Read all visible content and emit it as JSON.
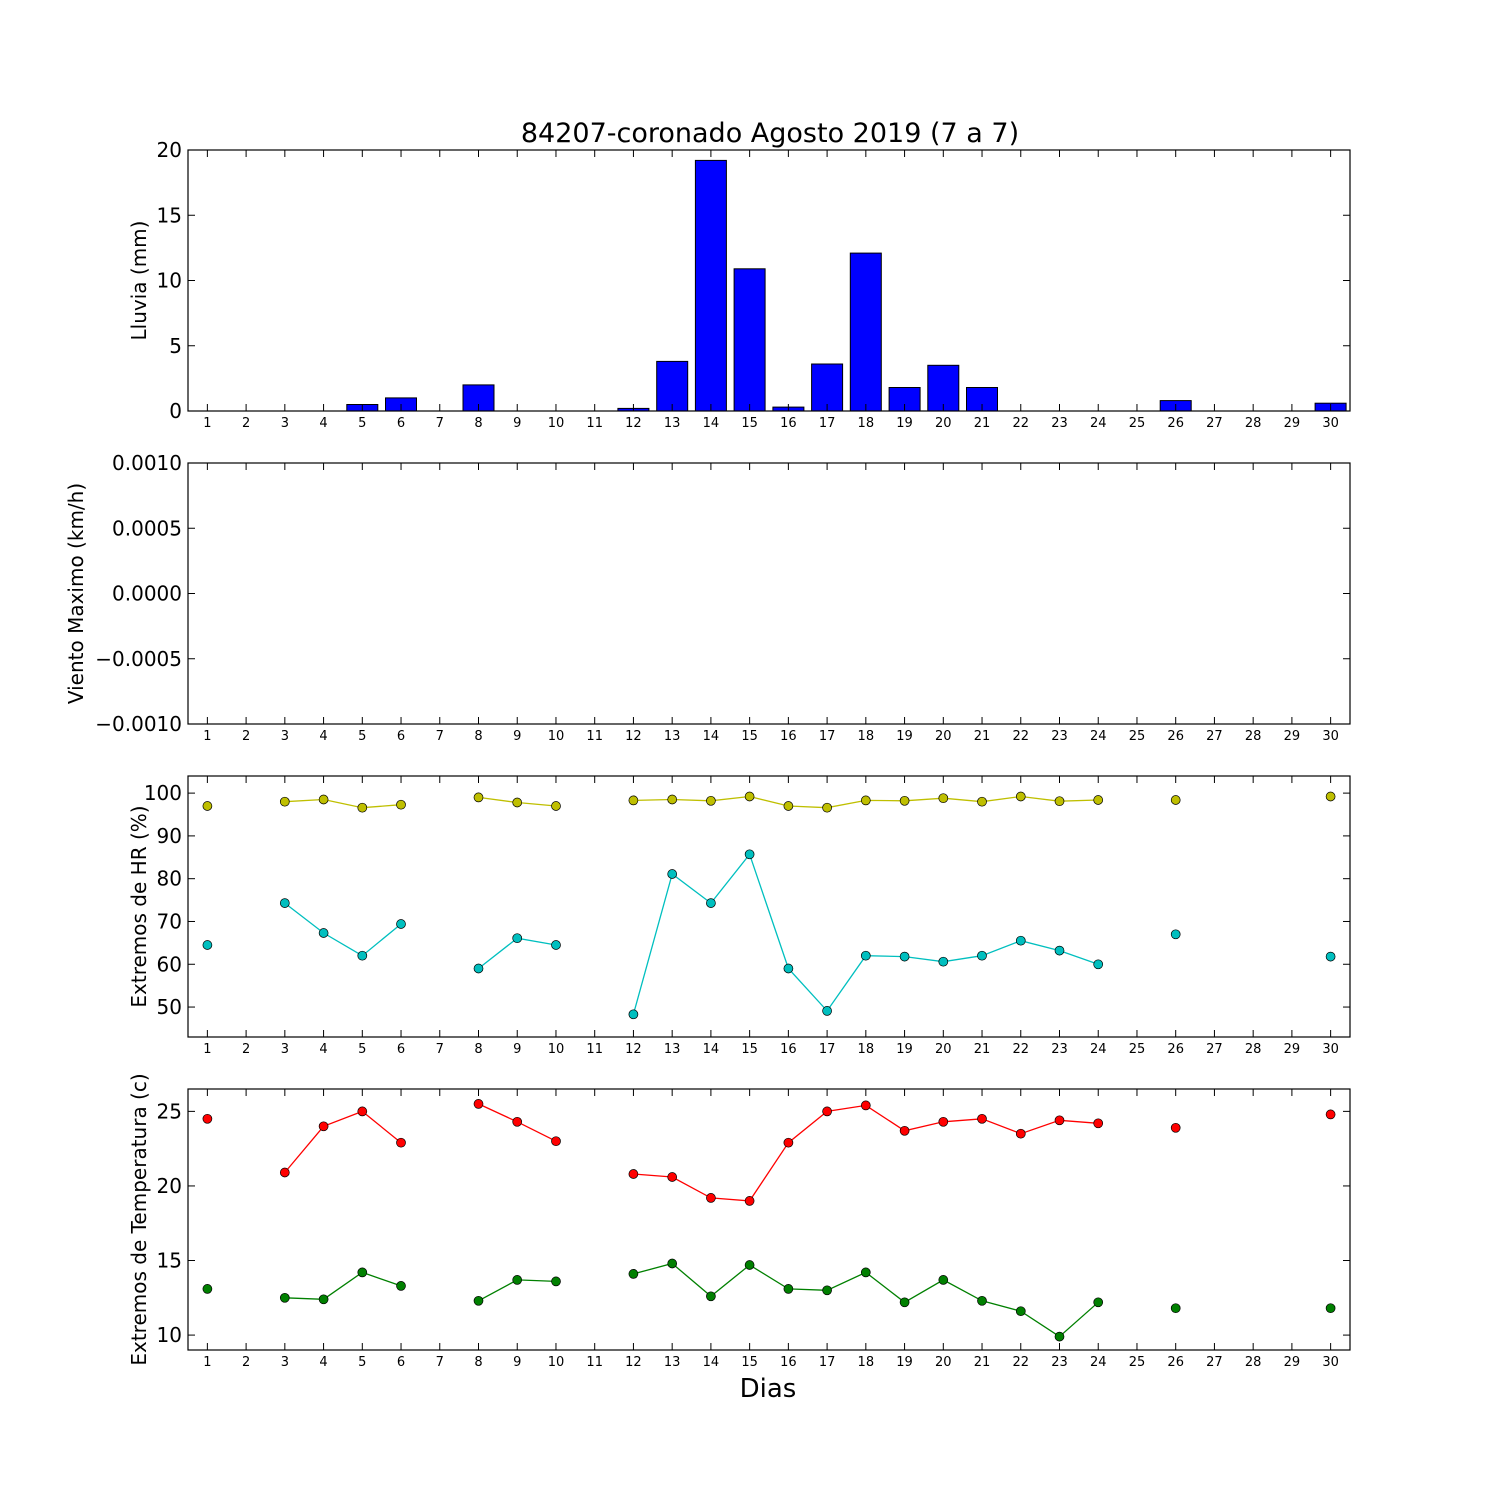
{
  "figure": {
    "title": "84207-coronado Agosto 2019  (7 a 7)",
    "xlabel": "Dias"
  },
  "chart_data": [
    {
      "id": "rain",
      "type": "bar",
      "ylabel": "Lluvia (mm)",
      "xlim": [
        0.5,
        30.5
      ],
      "ylim": [
        0,
        20
      ],
      "yticks": [
        "0",
        "5",
        "10",
        "15",
        "20"
      ],
      "ytick_values": [
        0,
        5,
        10,
        15,
        20
      ],
      "xticks": [
        1,
        2,
        3,
        4,
        5,
        6,
        7,
        8,
        9,
        10,
        11,
        12,
        13,
        14,
        15,
        16,
        17,
        18,
        19,
        20,
        21,
        22,
        23,
        24,
        25,
        26,
        27,
        28,
        29,
        30
      ],
      "bar_color": "#0000ff",
      "x": [
        1,
        2,
        3,
        4,
        5,
        6,
        7,
        8,
        9,
        10,
        11,
        12,
        13,
        14,
        15,
        16,
        17,
        18,
        19,
        20,
        21,
        22,
        23,
        24,
        25,
        26,
        27,
        28,
        29,
        30
      ],
      "values": [
        0,
        0,
        0,
        0,
        0.5,
        1.0,
        0,
        2.0,
        0,
        0,
        0,
        0.2,
        3.8,
        19.2,
        10.9,
        0.3,
        3.6,
        12.1,
        1.8,
        3.5,
        1.8,
        0,
        0,
        0,
        0,
        0.8,
        0,
        0,
        0,
        0.6
      ]
    },
    {
      "id": "wind",
      "type": "line",
      "ylabel": "Viento Maximo (km/h)",
      "xlim": [
        0.5,
        30.5
      ],
      "ylim": [
        -0.001,
        0.001
      ],
      "yticks": [
        "−0.0010",
        "−0.0005",
        "0.0000",
        "0.0005",
        "0.0010"
      ],
      "ytick_values": [
        -0.001,
        -0.0005,
        0,
        0.0005,
        0.001
      ],
      "xticks": [
        1,
        2,
        3,
        4,
        5,
        6,
        7,
        8,
        9,
        10,
        11,
        12,
        13,
        14,
        15,
        16,
        17,
        18,
        19,
        20,
        21,
        22,
        23,
        24,
        25,
        26,
        27,
        28,
        29,
        30
      ],
      "series": []
    },
    {
      "id": "humidity",
      "type": "line",
      "ylabel": "Extremos de HR (%)",
      "xlim": [
        0.5,
        30.5
      ],
      "ylim": [
        43,
        104
      ],
      "yticks": [
        "50",
        "60",
        "70",
        "80",
        "90",
        "100"
      ],
      "ytick_values": [
        50,
        60,
        70,
        80,
        90,
        100
      ],
      "xticks": [
        1,
        2,
        3,
        4,
        5,
        6,
        7,
        8,
        9,
        10,
        11,
        12,
        13,
        14,
        15,
        16,
        17,
        18,
        19,
        20,
        21,
        22,
        23,
        24,
        25,
        26,
        27,
        28,
        29,
        30
      ],
      "x": [
        1,
        2,
        3,
        4,
        5,
        6,
        7,
        8,
        9,
        10,
        11,
        12,
        13,
        14,
        15,
        16,
        17,
        18,
        19,
        20,
        21,
        22,
        23,
        24,
        25,
        26,
        27,
        28,
        29,
        30
      ],
      "series": [
        {
          "color": "#bfbf00",
          "values": [
            97,
            null,
            98,
            98.5,
            96.6,
            97.3,
            null,
            99,
            97.8,
            97,
            null,
            98.3,
            98.5,
            98.2,
            99.2,
            97,
            96.6,
            98.3,
            98.2,
            98.8,
            98,
            99.2,
            98.1,
            98.4,
            null,
            98.4,
            null,
            null,
            null,
            99.2
          ]
        },
        {
          "color": "#00bfbf",
          "values": [
            64.5,
            null,
            74.3,
            67.3,
            62,
            69.4,
            null,
            59,
            66.1,
            64.5,
            null,
            48.3,
            81.1,
            74.3,
            85.7,
            59,
            49.1,
            62,
            61.8,
            60.6,
            62,
            65.5,
            63.2,
            60,
            null,
            67,
            null,
            null,
            null,
            61.8
          ]
        }
      ]
    },
    {
      "id": "temperature",
      "type": "line",
      "ylabel": "Extremos de Temperatura (c)",
      "xlim": [
        0.5,
        30.5
      ],
      "ylim": [
        9,
        26.5
      ],
      "yticks": [
        "10",
        "15",
        "20",
        "25"
      ],
      "ytick_values": [
        10,
        15,
        20,
        25
      ],
      "xticks": [
        1,
        2,
        3,
        4,
        5,
        6,
        7,
        8,
        9,
        10,
        11,
        12,
        13,
        14,
        15,
        16,
        17,
        18,
        19,
        20,
        21,
        22,
        23,
        24,
        25,
        26,
        27,
        28,
        29,
        30
      ],
      "x": [
        1,
        2,
        3,
        4,
        5,
        6,
        7,
        8,
        9,
        10,
        11,
        12,
        13,
        14,
        15,
        16,
        17,
        18,
        19,
        20,
        21,
        22,
        23,
        24,
        25,
        26,
        27,
        28,
        29,
        30
      ],
      "series": [
        {
          "color": "#ff0000",
          "values": [
            24.5,
            null,
            20.9,
            24,
            25,
            22.9,
            null,
            25.5,
            24.3,
            23,
            null,
            20.8,
            20.6,
            19.2,
            19,
            22.9,
            25,
            25.4,
            23.7,
            24.3,
            24.5,
            23.5,
            24.4,
            24.2,
            null,
            23.9,
            null,
            null,
            null,
            24.8
          ]
        },
        {
          "color": "#008000",
          "values": [
            13.1,
            null,
            12.5,
            12.4,
            14.2,
            13.3,
            null,
            12.3,
            13.7,
            13.6,
            null,
            14.1,
            14.8,
            12.6,
            14.7,
            13.1,
            13,
            14.2,
            12.2,
            13.7,
            12.3,
            11.6,
            9.9,
            12.2,
            null,
            11.8,
            null,
            null,
            null,
            11.8
          ]
        }
      ]
    }
  ]
}
